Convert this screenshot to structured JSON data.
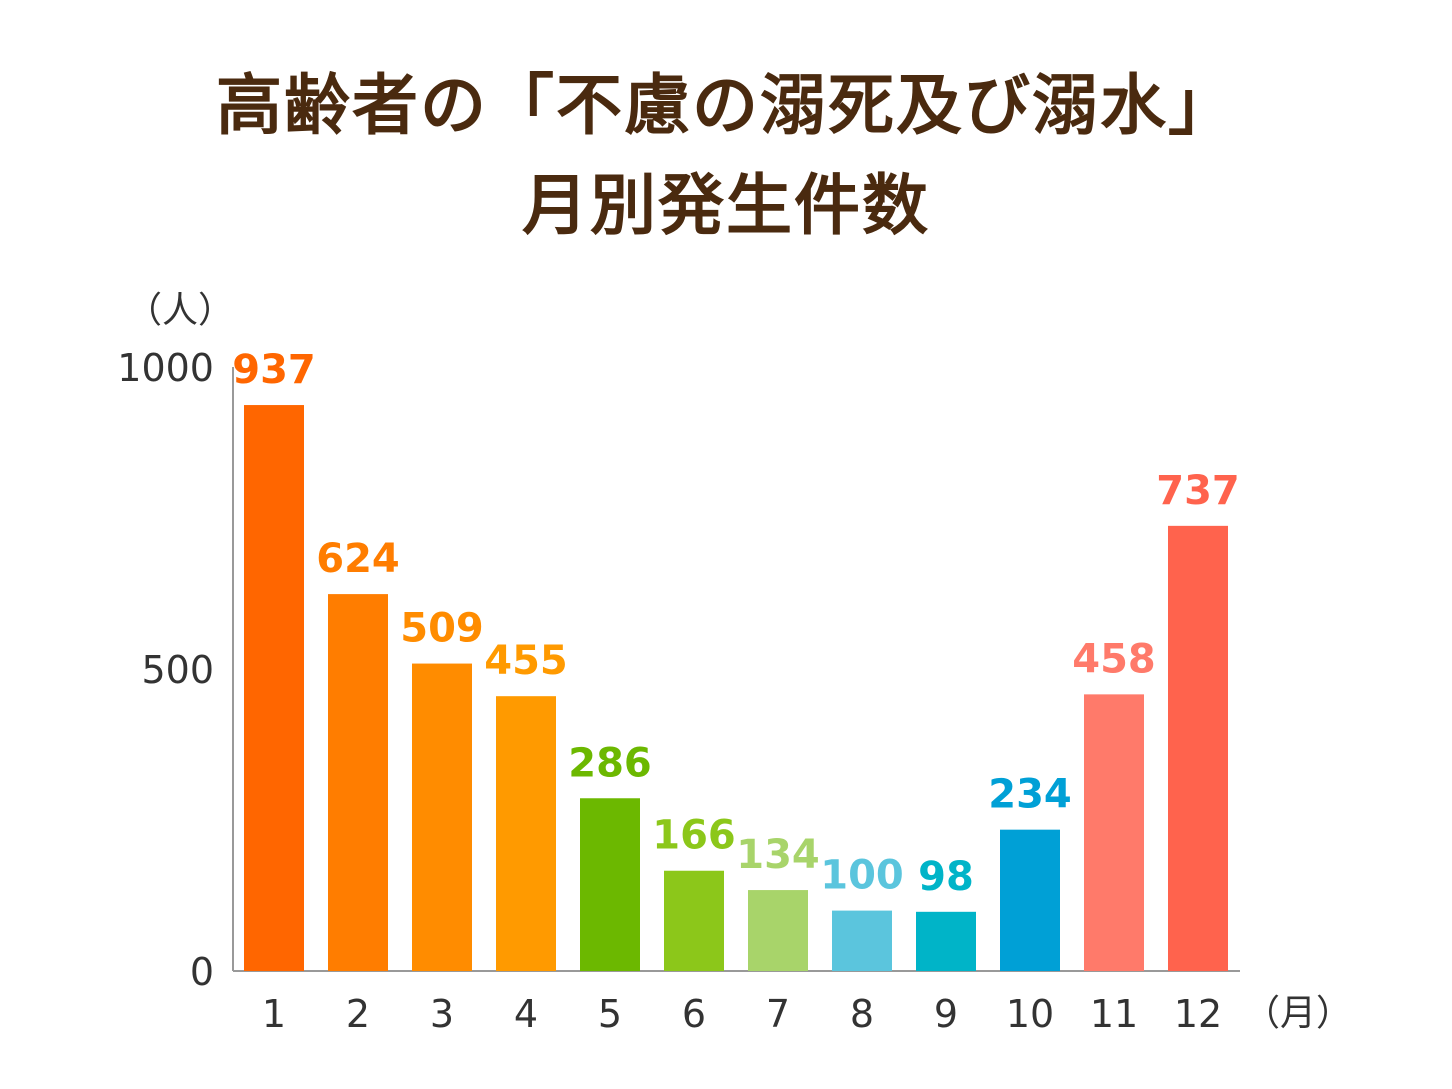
{
  "title": {
    "line1": "高齢者の「不慮の溺死及び溺水」",
    "line2": "月別発生件数"
  },
  "chart_data": {
    "type": "bar",
    "categories": [
      "1",
      "2",
      "3",
      "4",
      "5",
      "6",
      "7",
      "8",
      "9",
      "10",
      "11",
      "12"
    ],
    "values": [
      937,
      624,
      509,
      455,
      286,
      166,
      134,
      100,
      98,
      234,
      458,
      737
    ],
    "colors": [
      "#ff6600",
      "#ff7d00",
      "#ff8c00",
      "#ff9a00",
      "#6cb800",
      "#8cc71a",
      "#a8d46a",
      "#5bc5dd",
      "#00b4c8",
      "#00a0d6",
      "#ff7a6a",
      "#ff634d"
    ],
    "ylabel": "（人）",
    "xlabel": "（月）",
    "ylim": [
      0,
      1000
    ],
    "yticks": [
      0,
      500,
      1000
    ],
    "legend": "none",
    "grid": false
  }
}
